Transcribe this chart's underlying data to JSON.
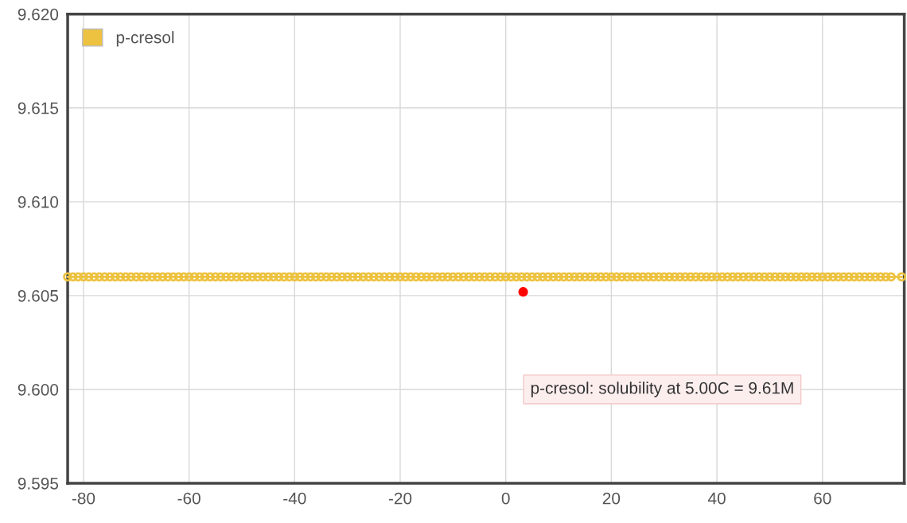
{
  "chart_data": {
    "type": "line",
    "x": [
      -83,
      -82,
      -81,
      -80,
      -79,
      -78,
      -77,
      -76,
      -75,
      -74,
      -73,
      -72,
      -71,
      -70,
      -69,
      -68,
      -67,
      -66,
      -65,
      -64,
      -63,
      -62,
      -61,
      -60,
      -59,
      -58,
      -57,
      -56,
      -55,
      -54,
      -53,
      -52,
      -51,
      -50,
      -49,
      -48,
      -47,
      -46,
      -45,
      -44,
      -43,
      -42,
      -41,
      -40,
      -39,
      -38,
      -37,
      -36,
      -35,
      -34,
      -33,
      -32,
      -31,
      -30,
      -29,
      -28,
      -27,
      -26,
      -25,
      -24,
      -23,
      -22,
      -21,
      -20,
      -19,
      -18,
      -17,
      -16,
      -15,
      -14,
      -13,
      -12,
      -11,
      -10,
      -9,
      -8,
      -7,
      -6,
      -5,
      -4,
      -3,
      -2,
      -1,
      0,
      1,
      2,
      3,
      4,
      5,
      6,
      7,
      8,
      9,
      10,
      11,
      12,
      13,
      14,
      15,
      16,
      17,
      18,
      19,
      20,
      21,
      22,
      23,
      24,
      25,
      26,
      27,
      28,
      29,
      30,
      31,
      32,
      33,
      34,
      35,
      36,
      37,
      38,
      39,
      40,
      41,
      42,
      43,
      44,
      45,
      46,
      47,
      48,
      49,
      50,
      51,
      52,
      53,
      54,
      55,
      56,
      57,
      58,
      59,
      60,
      61,
      62,
      63,
      64,
      65,
      66,
      67,
      68,
      69,
      70,
      71,
      72,
      73,
      75
    ],
    "series": [
      {
        "name": "p-cresol",
        "color": "#edc240",
        "values": [
          9.606,
          9.606,
          9.606,
          9.606,
          9.606,
          9.606,
          9.606,
          9.606,
          9.606,
          9.606,
          9.606,
          9.606,
          9.606,
          9.606,
          9.606,
          9.606,
          9.606,
          9.606,
          9.606,
          9.606,
          9.606,
          9.606,
          9.606,
          9.606,
          9.606,
          9.606,
          9.606,
          9.606,
          9.606,
          9.606,
          9.606,
          9.606,
          9.606,
          9.606,
          9.606,
          9.606,
          9.606,
          9.606,
          9.606,
          9.606,
          9.606,
          9.606,
          9.606,
          9.606,
          9.606,
          9.606,
          9.606,
          9.606,
          9.606,
          9.606,
          9.606,
          9.606,
          9.606,
          9.606,
          9.606,
          9.606,
          9.606,
          9.606,
          9.606,
          9.606,
          9.606,
          9.606,
          9.606,
          9.606,
          9.606,
          9.606,
          9.606,
          9.606,
          9.606,
          9.606,
          9.606,
          9.606,
          9.606,
          9.606,
          9.606,
          9.606,
          9.606,
          9.606,
          9.606,
          9.606,
          9.606,
          9.606,
          9.606,
          9.606,
          9.606,
          9.606,
          9.606,
          9.606,
          9.606,
          9.606,
          9.606,
          9.606,
          9.606,
          9.606,
          9.606,
          9.606,
          9.606,
          9.606,
          9.606,
          9.606,
          9.606,
          9.606,
          9.606,
          9.606,
          9.606,
          9.606,
          9.606,
          9.606,
          9.606,
          9.606,
          9.606,
          9.606,
          9.606,
          9.606,
          9.606,
          9.606,
          9.606,
          9.606,
          9.606,
          9.606,
          9.606,
          9.606,
          9.606,
          9.606,
          9.606,
          9.606,
          9.606,
          9.606,
          9.606,
          9.606,
          9.606,
          9.606,
          9.606,
          9.606,
          9.606,
          9.606,
          9.606,
          9.606,
          9.606,
          9.606,
          9.606,
          9.606,
          9.606,
          9.606,
          9.606,
          9.606,
          9.606,
          9.606,
          9.606,
          9.606,
          9.606,
          9.606,
          9.606,
          9.606,
          9.606,
          9.606,
          9.606,
          9.606
        ]
      },
      {
        "type": "scatter",
        "color": "#ff0000",
        "x": [
          3.3
        ],
        "values": [
          9.6052
        ]
      }
    ],
    "annotations": [
      "p-cresol: solubility at 5.00C = 9.61M"
    ],
    "xlim": [
      -83,
      75.5
    ],
    "ylim": [
      9.595,
      9.62
    ],
    "xticks": [
      -80,
      -60,
      -40,
      -20,
      0,
      20,
      40,
      60
    ],
    "yticks": [
      {
        "value": 9.595,
        "label": "9.595"
      },
      {
        "value": 9.6,
        "label": "9.600"
      },
      {
        "value": 9.605,
        "label": "9.605"
      },
      {
        "value": 9.61,
        "label": "9.610"
      },
      {
        "value": 9.615,
        "label": "9.615"
      },
      {
        "value": 9.62,
        "label": "9.620"
      }
    ],
    "grid": true,
    "legend": "top left",
    "marker": "circle",
    "line_style": "solid"
  }
}
